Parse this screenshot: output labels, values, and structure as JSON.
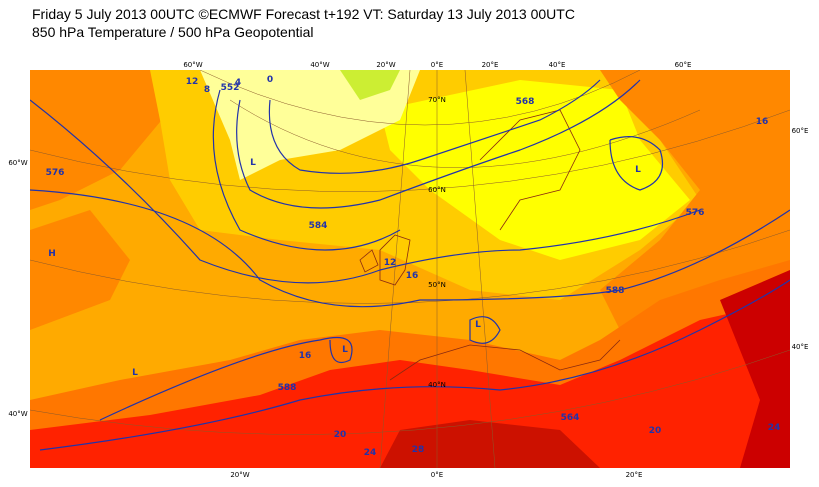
{
  "header": {
    "title": "Friday 5 July 2013 00UTC ©ECMWF Forecast t+192 VT: Saturday 13 July 2013 00UTC",
    "subtitle": "850 hPa Temperature / 500 hPa Geopotential"
  },
  "map": {
    "top_longitudes": [
      "60°W",
      "40°W",
      "20°W",
      "0°E",
      "20°E",
      "40°E",
      "60°E"
    ],
    "bottom_longitudes": [
      "20°W",
      "0°E",
      "20°E"
    ],
    "left_labels": [
      "60°W",
      "40°W"
    ],
    "right_labels": [
      "60°E",
      "40°E"
    ],
    "latitudes": [
      "70°N",
      "60°N",
      "50°N",
      "40°N"
    ],
    "contour_labels": [
      "576",
      "584",
      "588",
      "552",
      "568",
      "564",
      "12",
      "8",
      "4",
      "0",
      "16",
      "12",
      "16",
      "20",
      "24",
      "28",
      "20",
      "24",
      "16",
      "576",
      "588"
    ],
    "pressure_labels": [
      "L",
      "L",
      "L",
      "L",
      "L",
      "H"
    ]
  }
}
